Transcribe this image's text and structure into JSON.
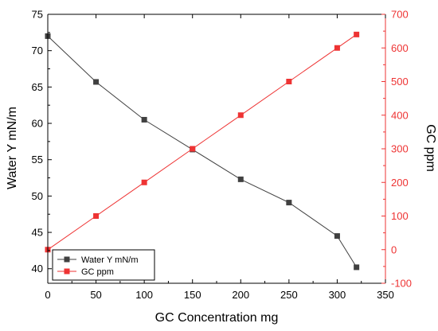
{
  "chart_data": {
    "type": "line",
    "xlabel": "GC Concentration mg",
    "ylabel_left": "Water Υ mN/m",
    "ylabel_right": "GC ppm",
    "xlim": [
      0,
      350
    ],
    "ylim_left": [
      38,
      75
    ],
    "ylim_right": [
      -100,
      700
    ],
    "x_ticks": [
      0,
      50,
      100,
      150,
      200,
      250,
      300,
      350
    ],
    "y_left_ticks": [
      40,
      45,
      50,
      55,
      60,
      65,
      70,
      75
    ],
    "y_right_ticks": [
      -100,
      0,
      100,
      200,
      300,
      400,
      500,
      600,
      700
    ],
    "grid": false,
    "legend_position": "bottom-left",
    "series": [
      {
        "name": "Water Υ mN/m",
        "axis": "left",
        "color": "#404040",
        "marker": "square",
        "x": [
          0,
          50,
          100,
          150,
          200,
          250,
          300,
          320
        ],
        "y": [
          72.0,
          65.7,
          60.5,
          56.4,
          52.3,
          49.1,
          44.5,
          40.2
        ]
      },
      {
        "name": "GC ppm",
        "axis": "right",
        "color": "#ee3333",
        "marker": "square",
        "x": [
          0,
          50,
          100,
          150,
          200,
          250,
          300,
          320
        ],
        "y": [
          0,
          100,
          200,
          300,
          400,
          500,
          600,
          640
        ]
      }
    ]
  }
}
